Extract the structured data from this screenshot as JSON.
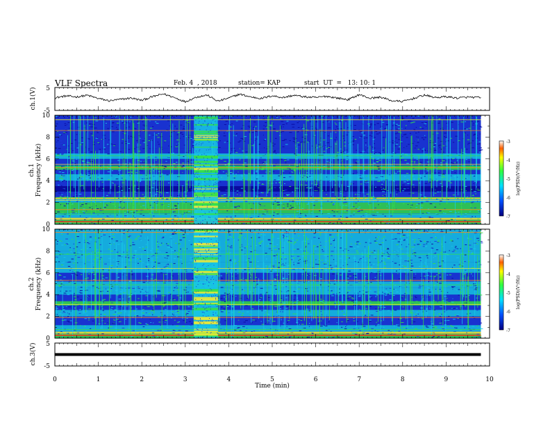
{
  "header": {
    "title": "VLF Spectra",
    "date": "Feb. 4  , 2018",
    "station": "station= KAP",
    "start": "start  UT  =   13: 10: 1"
  },
  "colors": {
    "deep_blue": "#0a0a9e",
    "blue": "#1c39d8",
    "cyan": "#18c8e8",
    "green": "#34e04a",
    "yellow": "#e8e83a",
    "orange": "#ff8a1c",
    "red": "#e81818"
  },
  "chart_data": [
    {
      "type": "line",
      "panel": "ch1-waveform",
      "ylabel": "ch.1(V)",
      "ylim": [
        -5,
        5
      ],
      "yticks": [
        "5",
        "-5"
      ],
      "xlim": [
        0,
        10
      ],
      "x": [
        0,
        0.25,
        0.5,
        0.75,
        1.0,
        1.25,
        1.5,
        1.75,
        2.0,
        2.25,
        2.5,
        2.75,
        3.0,
        3.25,
        3.5,
        3.75,
        4.0,
        4.25,
        4.5,
        4.75,
        5.0,
        5.25,
        5.5,
        5.75,
        6.0,
        6.25,
        6.5,
        6.75,
        7.0,
        7.25,
        7.5,
        7.75,
        8.0,
        8.25,
        8.5,
        8.75,
        9.0,
        9.25,
        9.5,
        9.8
      ],
      "y": [
        0.5,
        1.3,
        0.9,
        1.6,
        0.2,
        -0.8,
        -0.2,
        0.4,
        -0.6,
        1.0,
        2.2,
        0.6,
        -1.2,
        0.8,
        1.7,
        -1.0,
        0.4,
        2.1,
        0.9,
        0.2,
        1.4,
        0.6,
        1.6,
        0.9,
        0.6,
        1.2,
        0.4,
        -0.3,
        1.9,
        0.3,
        0.8,
        -0.8,
        -1.1,
        0.2,
        1.7,
        0.6,
        1.0,
        0.4,
        0.8,
        0.6
      ]
    },
    {
      "type": "heatmap",
      "panel": "ch1-spectrogram",
      "ylabel": "ch.1\nFrequency  (kHz)",
      "ylim": [
        0,
        10
      ],
      "yticks": [
        "0",
        "2",
        "4",
        "6",
        "8",
        "10"
      ],
      "xlim": [
        0,
        10
      ],
      "colorbar": {
        "label": "log(PSD)(V²/Hz)",
        "ticks": [
          "-3",
          "-4",
          "-5",
          "-6",
          "-7"
        ],
        "range": [
          -7,
          -3
        ]
      },
      "burst_interval_min": [
        3.2,
        3.75
      ]
    },
    {
      "type": "heatmap",
      "panel": "ch2-spectrogram",
      "ylabel": "ch.2\nFrequency  (kHz)",
      "ylim": [
        0,
        10
      ],
      "yticks": [
        "0",
        "2",
        "4",
        "6",
        "8",
        "10"
      ],
      "xlim": [
        0,
        10
      ],
      "colorbar": {
        "label": "log(PSD)(V²/Hz)",
        "ticks": [
          "-3",
          "-4",
          "-5",
          "-6",
          "-7"
        ],
        "range": [
          -7,
          -3
        ]
      },
      "burst_interval_min": [
        3.2,
        3.75
      ]
    },
    {
      "type": "line",
      "panel": "ch3-waveform",
      "ylabel": "ch.3(V)",
      "ylim": [
        -5,
        5
      ],
      "yticks": [
        "5",
        "-5"
      ],
      "xlim": [
        0,
        10
      ],
      "xlabel": "Time  (min)",
      "xticks": [
        "0",
        "1",
        "2",
        "3",
        "4",
        "5",
        "6",
        "7",
        "8",
        "9",
        "10"
      ],
      "x": [
        0,
        9.8
      ],
      "y": [
        0,
        0
      ]
    }
  ]
}
